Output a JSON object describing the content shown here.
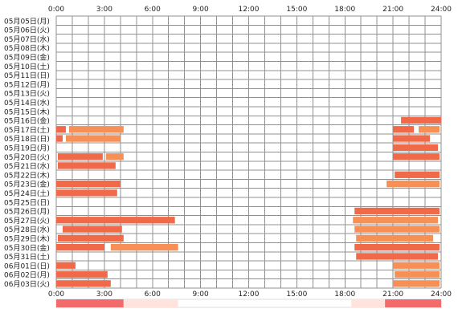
{
  "chart_data": {
    "type": "heatmap",
    "title": "",
    "x_ticks": [
      "0:00",
      "3:00",
      "6:00",
      "9:00",
      "12:00",
      "15:00",
      "18:00",
      "21:00",
      "24:00"
    ],
    "x_range_hours": [
      0,
      24
    ],
    "grid": true,
    "colors": {
      "grid": "#909090",
      "block": "#f06a4a",
      "block_light": "#f79057",
      "summary_strong": "#f26a6a",
      "summary_light": "#ffe3dc"
    },
    "rows": [
      {
        "label": "05月05日(月)",
        "segments": []
      },
      {
        "label": "05月06日(火)",
        "segments": []
      },
      {
        "label": "05月07日(水)",
        "segments": []
      },
      {
        "label": "05月08日(木)",
        "segments": []
      },
      {
        "label": "05月09日(金)",
        "segments": []
      },
      {
        "label": "05月10日(土)",
        "segments": []
      },
      {
        "label": "05月11日(日)",
        "segments": []
      },
      {
        "label": "05月12日(月)",
        "segments": []
      },
      {
        "label": "05月13日(火)",
        "segments": []
      },
      {
        "label": "05月14日(水)",
        "segments": []
      },
      {
        "label": "05月15日(木)",
        "segments": []
      },
      {
        "label": "05月16日(金)",
        "segments": [
          [
            21.5,
            24.0
          ]
        ]
      },
      {
        "label": "05月17日(土)",
        "segments": [
          [
            0.0,
            0.6
          ],
          [
            0.8,
            4.2
          ],
          [
            21.0,
            22.3
          ],
          [
            22.6,
            23.9
          ]
        ]
      },
      {
        "label": "05月18日(日)",
        "segments": [
          [
            0.0,
            0.4
          ],
          [
            0.6,
            4.0
          ],
          [
            21.0,
            23.3
          ]
        ]
      },
      {
        "label": "05月19日(月)",
        "segments": [
          [
            21.0,
            23.8
          ]
        ]
      },
      {
        "label": "05月20日(火)",
        "segments": [
          [
            0.1,
            2.9
          ],
          [
            3.1,
            4.2
          ],
          [
            21.0,
            23.9
          ]
        ]
      },
      {
        "label": "05月21日(水)",
        "segments": [
          [
            0.1,
            3.7
          ]
        ]
      },
      {
        "label": "05月22日(木)",
        "segments": [
          [
            21.1,
            23.9
          ]
        ]
      },
      {
        "label": "05月23日(金)",
        "segments": [
          [
            0.0,
            4.0
          ],
          [
            20.6,
            23.9
          ]
        ]
      },
      {
        "label": "05月24日(土)",
        "segments": [
          [
            0.0,
            3.8
          ]
        ]
      },
      {
        "label": "05月25日(日)",
        "segments": []
      },
      {
        "label": "05月26日(月)",
        "segments": [
          [
            18.6,
            23.9
          ]
        ]
      },
      {
        "label": "05月27日(火)",
        "segments": [
          [
            0.0,
            7.4
          ],
          [
            18.5,
            23.8
          ]
        ]
      },
      {
        "label": "05月28日(水)",
        "segments": [
          [
            0.4,
            4.1
          ],
          [
            18.6,
            23.9
          ]
        ]
      },
      {
        "label": "05月29日(木)",
        "segments": [
          [
            0.1,
            4.2
          ],
          [
            18.7,
            23.5
          ]
        ]
      },
      {
        "label": "05月30日(金)",
        "segments": [
          [
            0.0,
            3.0
          ],
          [
            3.4,
            7.6
          ],
          [
            18.6,
            23.9
          ]
        ]
      },
      {
        "label": "05月31日(土)",
        "segments": [
          [
            18.7,
            23.8
          ]
        ]
      },
      {
        "label": "06月01日(日)",
        "segments": [
          [
            0.0,
            1.2
          ],
          [
            21.0,
            23.9
          ]
        ]
      },
      {
        "label": "06月02日(月)",
        "segments": [
          [
            0.0,
            3.2
          ],
          [
            21.1,
            23.9
          ]
        ]
      },
      {
        "label": "06月03日(火)",
        "segments": [
          [
            0.0,
            3.4
          ],
          [
            21.0,
            23.9
          ]
        ]
      }
    ],
    "summary_bar": [
      [
        0.0,
        4.2,
        "strong"
      ],
      [
        4.2,
        7.6,
        "light"
      ],
      [
        18.4,
        20.5,
        "light"
      ],
      [
        20.5,
        24.0,
        "strong"
      ]
    ]
  }
}
